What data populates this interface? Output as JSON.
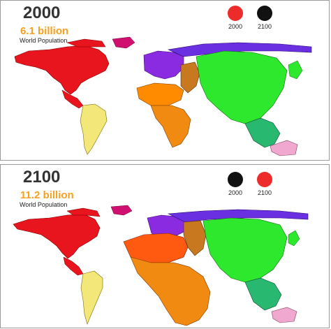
{
  "panels": [
    {
      "year": "2000",
      "population": "6.1 billion",
      "caption": "World Population",
      "legend": [
        {
          "label": "2000",
          "color": "#ee2b2b"
        },
        {
          "label": "2100",
          "color": "#111111"
        }
      ]
    },
    {
      "year": "2100",
      "population": "11.2 billion",
      "caption": "World Population",
      "legend": [
        {
          "label": "2000",
          "color": "#111111"
        },
        {
          "label": "2100",
          "color": "#ee2b2b"
        }
      ]
    }
  ],
  "region_colors": {
    "north_america": "#e8141e",
    "central_america": "#e8141e",
    "south_america": "#f4e77a",
    "europe": "#8a2be2",
    "russia": "#6a2fe0",
    "north_africa": "#ff8c00",
    "africa": "#f08a10",
    "middle_east": "#c8781e",
    "asia": "#2ee82e",
    "southeast_asia": "#28b870",
    "oceania": "#f0a8d0",
    "greenland": "#d01070"
  }
}
